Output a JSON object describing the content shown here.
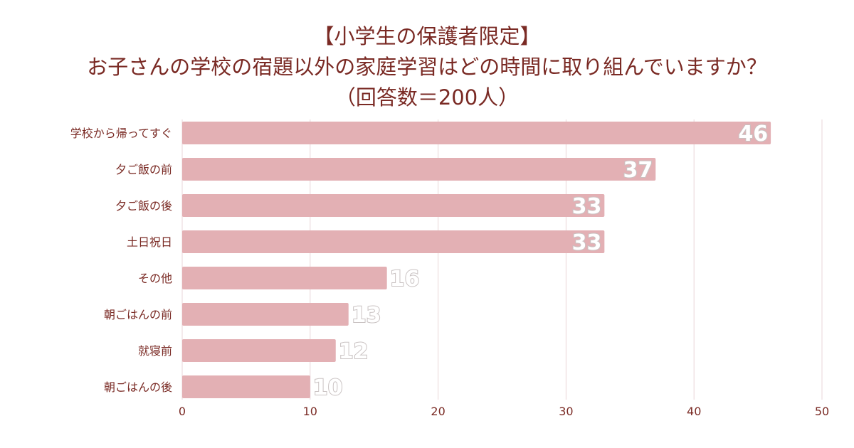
{
  "title_lines": [
    "【小学生の保護者限定】",
    "お子さんの学校の宿題以外の家庭学習はどの時間に取り組んでいますか？",
    "（回答数＝200人）"
  ],
  "colors": {
    "bar": "#e3b0b4",
    "text": "#7a2a24",
    "grid": "#ead6d8"
  },
  "chart_data": {
    "type": "bar",
    "orientation": "horizontal",
    "categories": [
      "学校から帰ってすぐ",
      "夕ご飯の前",
      "夕ご飯の後",
      "土日祝日",
      "その他",
      "朝ごはんの前",
      "就寝前",
      "朝ごはんの後"
    ],
    "values": [
      46,
      37,
      33,
      33,
      16,
      13,
      12,
      10
    ],
    "xlim": [
      0,
      50
    ],
    "xticks": [
      0,
      10,
      20,
      30,
      40,
      50
    ],
    "grid": true,
    "legend": "none"
  }
}
